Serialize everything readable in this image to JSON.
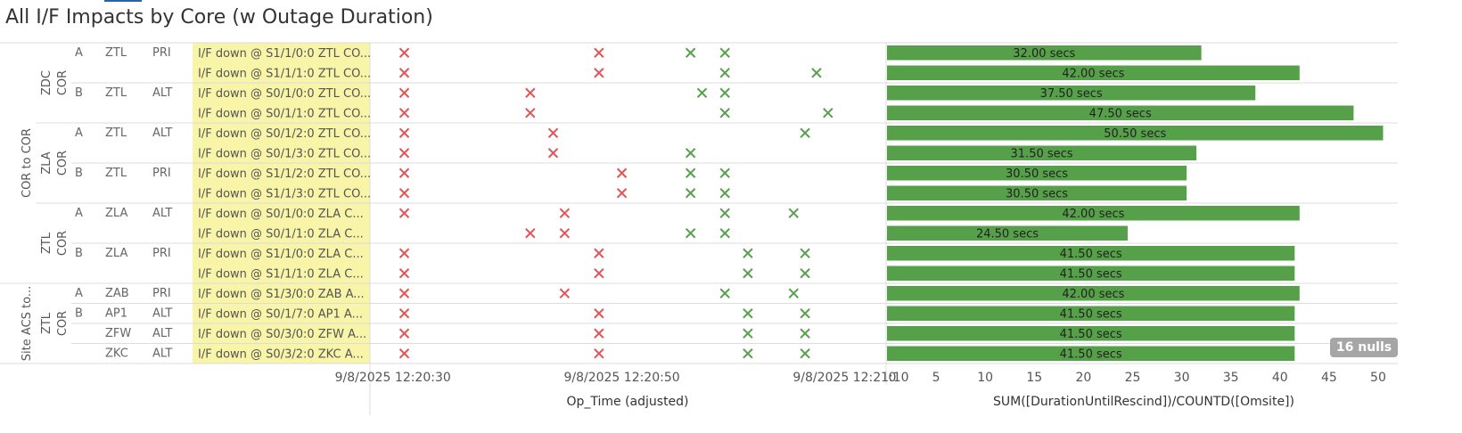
{
  "title": "All I/F Impacts by Core (w Outage Duration)",
  "colors": {
    "red": "#e15759",
    "green": "#59a14f",
    "bar": "#57a04a",
    "highlight": "#f8f4a8"
  },
  "nulls_badge": "16 nulls",
  "group_labels": [
    {
      "text": "COR to COR",
      "rows": [
        0,
        11
      ]
    },
    {
      "text": "Site ACS to...",
      "rows": [
        12,
        15
      ]
    }
  ],
  "sub_group_labels": [
    {
      "line1": "ZDC",
      "line2": "COR",
      "rows": [
        0,
        3
      ]
    },
    {
      "line1": "ZLA",
      "line2": "COR",
      "rows": [
        4,
        7
      ]
    },
    {
      "line1": "ZTL",
      "line2": "COR",
      "rows": [
        8,
        11
      ]
    },
    {
      "line1": "ZTL",
      "line2": "COR",
      "rows": [
        12,
        15
      ]
    }
  ],
  "side_labels": [
    {
      "text": "A",
      "row": 0
    },
    {
      "text": "B",
      "row": 2
    },
    {
      "text": "A",
      "row": 4
    },
    {
      "text": "B",
      "row": 6
    },
    {
      "text": "A",
      "row": 8
    },
    {
      "text": "B",
      "row": 10
    },
    {
      "text": "A",
      "row": 12
    },
    {
      "text": "B",
      "row": 13
    }
  ],
  "rows": [
    {
      "site": "ZTL",
      "role": "PRI",
      "iface": "I/F down @ S1/1/0:0 ZTL CO...",
      "red": [
        "12:20:31",
        "12:20:48"
      ],
      "green": [
        "12:20:56",
        "12:20:59"
      ],
      "duration": 32.0,
      "label": "32.00 secs"
    },
    {
      "site": "",
      "role": "",
      "iface": "I/F down @ S1/1/1:0 ZTL CO...",
      "red": [
        "12:20:31",
        "12:20:48"
      ],
      "green": [
        "12:20:59",
        "12:21:07"
      ],
      "duration": 42.0,
      "label": "42.00 secs"
    },
    {
      "site": "ZTL",
      "role": "ALT",
      "iface": "I/F down @ S0/1/0:0 ZTL CO...",
      "red": [
        "12:20:31",
        "12:20:42"
      ],
      "green": [
        "12:20:57",
        "12:20:59"
      ],
      "duration": 37.5,
      "label": "37.50 secs"
    },
    {
      "site": "",
      "role": "",
      "iface": "I/F down @ S0/1/1:0 ZTL CO...",
      "red": [
        "12:20:31",
        "12:20:42"
      ],
      "green": [
        "12:20:59",
        "12:21:08"
      ],
      "duration": 47.5,
      "label": "47.50 secs"
    },
    {
      "site": "ZTL",
      "role": "ALT",
      "iface": "I/F down @ S0/1/2:0 ZTL CO...",
      "red": [
        "12:20:31",
        "12:20:44"
      ],
      "green": [
        "12:21:06"
      ],
      "duration": 50.5,
      "label": "50.50 secs"
    },
    {
      "site": "",
      "role": "",
      "iface": "I/F down @ S0/1/3:0 ZTL CO...",
      "red": [
        "12:20:31",
        "12:20:44"
      ],
      "green": [
        "12:20:56"
      ],
      "duration": 31.5,
      "label": "31.50 secs"
    },
    {
      "site": "ZTL",
      "role": "PRI",
      "iface": "I/F down @ S1/1/2:0 ZTL CO...",
      "red": [
        "12:20:31",
        "12:20:50"
      ],
      "green": [
        "12:20:56",
        "12:20:59"
      ],
      "duration": 30.5,
      "label": "30.50 secs"
    },
    {
      "site": "",
      "role": "",
      "iface": "I/F down @ S1/1/3:0 ZTL CO...",
      "red": [
        "12:20:31",
        "12:20:50"
      ],
      "green": [
        "12:20:56",
        "12:20:59"
      ],
      "duration": 30.5,
      "label": "30.50 secs"
    },
    {
      "site": "ZLA",
      "role": "ALT",
      "iface": "I/F down @ S0/1/0:0 ZLA C...",
      "red": [
        "12:20:31",
        "12:20:45"
      ],
      "green": [
        "12:20:59",
        "12:21:05"
      ],
      "duration": 42.0,
      "label": "42.00 secs"
    },
    {
      "site": "",
      "role": "",
      "iface": "I/F down @ S0/1/1:0 ZLA C...",
      "red": [
        "12:20:42",
        "12:20:45"
      ],
      "green": [
        "12:20:56",
        "12:20:59"
      ],
      "duration": 24.5,
      "label": "24.50 secs"
    },
    {
      "site": "ZLA",
      "role": "PRI",
      "iface": "I/F down @ S1/1/0:0 ZLA C...",
      "red": [
        "12:20:31",
        "12:20:48"
      ],
      "green": [
        "12:21:01",
        "12:21:06"
      ],
      "duration": 41.5,
      "label": "41.50 secs"
    },
    {
      "site": "",
      "role": "",
      "iface": "I/F down @ S1/1/1:0 ZLA C...",
      "red": [
        "12:20:31",
        "12:20:48"
      ],
      "green": [
        "12:21:01",
        "12:21:06"
      ],
      "duration": 41.5,
      "label": "41.50 secs"
    },
    {
      "site": "ZAB",
      "role": "PRI",
      "iface": "I/F down @ S1/3/0:0 ZAB A...",
      "red": [
        "12:20:31",
        "12:20:45"
      ],
      "green": [
        "12:20:59",
        "12:21:05"
      ],
      "duration": 42.0,
      "label": "42.00 secs"
    },
    {
      "site": "AP1",
      "role": "ALT",
      "iface": "I/F down @ S0/1/7:0 AP1 A...",
      "red": [
        "12:20:31",
        "12:20:48"
      ],
      "green": [
        "12:21:01",
        "12:21:06"
      ],
      "duration": 41.5,
      "label": "41.50 secs"
    },
    {
      "site": "ZFW",
      "role": "ALT",
      "iface": "I/F down @ S0/3/0:0 ZFW A...",
      "red": [
        "12:20:31",
        "12:20:48"
      ],
      "green": [
        "12:21:01",
        "12:21:06"
      ],
      "duration": 41.5,
      "label": "41.50 secs"
    },
    {
      "site": "ZKC",
      "role": "ALT",
      "iface": "I/F down @ S0/3/2:0 ZKC A...",
      "red": [
        "12:20:31",
        "12:20:48"
      ],
      "green": [
        "12:21:01",
        "12:21:06"
      ],
      "duration": 41.5,
      "label": "41.50 secs"
    }
  ],
  "chart_data": [
    {
      "type": "scatter",
      "xlabel": "Op_Time (adjusted)",
      "x_ticks": [
        "9/8/2025 12:20:30",
        "9/8/2025 12:20:50",
        "9/8/2025 12:21:10"
      ],
      "xlim": [
        "9/8/2025 12:20:28",
        "9/8/2025 12:21:13"
      ],
      "series": [
        {
          "name": "",
          "marker": "x",
          "color": "#e15759"
        },
        {
          "name": "",
          "marker": "x",
          "color": "#59a14f"
        }
      ]
    },
    {
      "type": "bar",
      "orientation": "horizontal",
      "xlabel": "SUM([DurationUntilRescind])/COUNTD([Omsite])",
      "xlim": [
        0,
        52
      ],
      "x_ticks": [
        0,
        5,
        10,
        15,
        20,
        25,
        30,
        35,
        40,
        45,
        50
      ],
      "values": [
        32.0,
        42.0,
        37.5,
        47.5,
        50.5,
        31.5,
        30.5,
        30.5,
        42.0,
        24.5,
        41.5,
        41.5,
        42.0,
        41.5,
        41.5,
        41.5
      ]
    }
  ]
}
